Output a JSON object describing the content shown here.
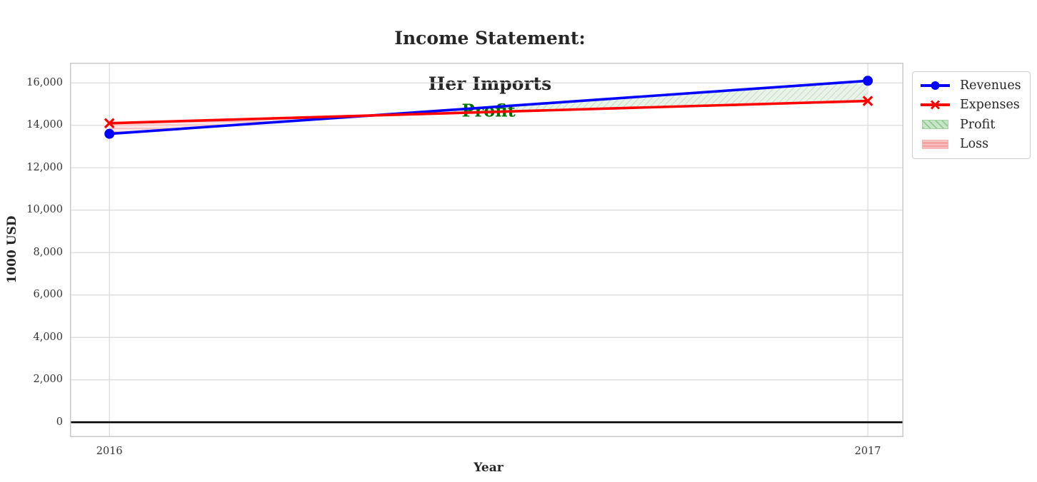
{
  "title": {
    "line1": "Income Statement:",
    "line2": "Her Imports"
  },
  "axes": {
    "xlabel": "Year",
    "ylabel": "1000 USD"
  },
  "legend": {
    "items": [
      {
        "label": "Revenues",
        "marker": "blue-line-circle"
      },
      {
        "label": "Expenses",
        "marker": "red-line-x"
      },
      {
        "label": "Profit",
        "marker": "green-hatched-patch"
      },
      {
        "label": "Loss",
        "marker": "pink-hatched-patch"
      }
    ]
  },
  "annotation": {
    "text": "Profit",
    "color": "#007000"
  },
  "colors": {
    "revenues": "#0000ff",
    "expenses": "#ff0000",
    "profit_fill": "#e9f3e9",
    "profit_hatch": "#b9dcb9",
    "loss_fill": "#fbe9e9",
    "loss_hatch": "#f3bcbc",
    "grid": "#dcdcdc",
    "border": "#c9c9c9",
    "zero_line": "#000000",
    "text": "#262626"
  },
  "chart_data": {
    "type": "line",
    "title": "Income Statement:\nHer Imports",
    "xlabel": "Year",
    "ylabel": "1000 USD",
    "x": [
      2016,
      2017
    ],
    "x_tick_labels": [
      "2016",
      "2017"
    ],
    "series": [
      {
        "name": "Revenues",
        "values": [
          13600,
          16100
        ],
        "color": "#0000ff",
        "marker": "o"
      },
      {
        "name": "Expenses",
        "values": [
          14100,
          15150
        ],
        "color": "#ff0000",
        "marker": "x"
      }
    ],
    "fill_between": [
      {
        "name": "Profit",
        "condition": "revenues > expenses",
        "hatch": "//",
        "color": "green"
      },
      {
        "name": "Loss",
        "condition": "expenses > revenues",
        "hatch": "--",
        "color": "red"
      }
    ],
    "annotation": {
      "text": "Profit",
      "x": 2016.5,
      "y": 14700
    },
    "xlim": [
      2015.948,
      2017.047
    ],
    "ylim": [
      -700,
      16950
    ],
    "y_tick_values": [
      0,
      2000,
      4000,
      6000,
      8000,
      10000,
      12000,
      14000,
      16000
    ],
    "y_tick_labels": [
      "0",
      "2,000",
      "4,000",
      "6,000",
      "8,000",
      "10,000",
      "12,000",
      "14,000",
      "16,000"
    ],
    "grid": true,
    "zero_line": true,
    "legend_position": "outside-upper-right"
  }
}
